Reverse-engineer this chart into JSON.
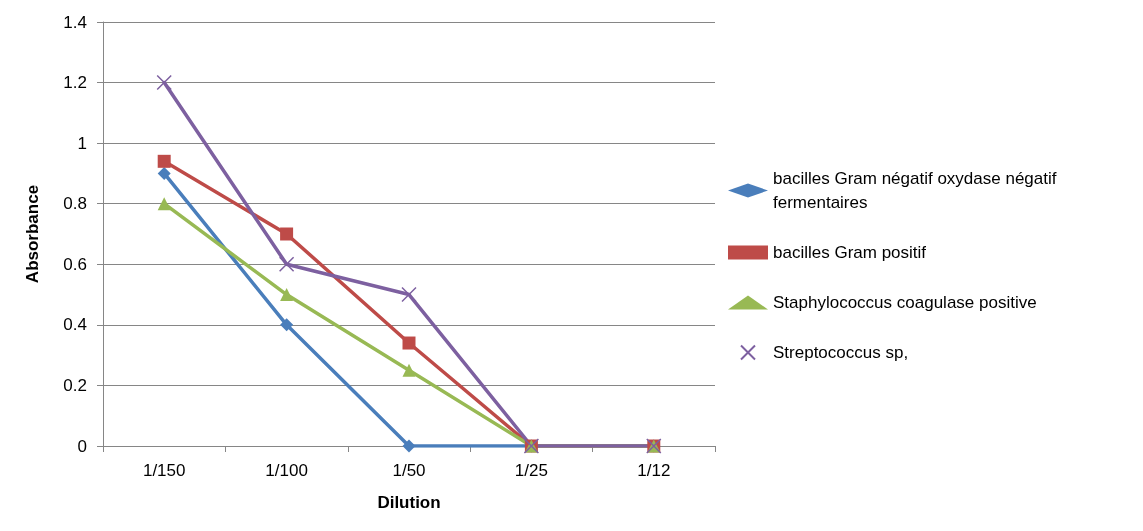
{
  "chart_data": {
    "type": "line",
    "xlabel": "Dilution",
    "ylabel": "Absorbance",
    "categories": [
      "1/150",
      "1/100",
      "1/50",
      "1/25",
      "1/12"
    ],
    "ylim": [
      0,
      1.4
    ],
    "yticks": [
      0,
      0.2,
      0.4,
      0.6,
      0.8,
      1,
      1.2,
      1.4
    ],
    "grid": "y",
    "legend": "right",
    "line_style": "solid",
    "series": [
      {
        "name": "bacilles Gram négatif oxydase négatif fermentaires",
        "color": "#4a7ebb",
        "marker": "diamond",
        "values": [
          0.9,
          0.4,
          0,
          0,
          0
        ]
      },
      {
        "name": "bacilles Gram positif",
        "color": "#be4b48",
        "marker": "square",
        "values": [
          0.94,
          0.7,
          0.34,
          0,
          0
        ]
      },
      {
        "name": "Staphylococcus coagulase positive",
        "color": "#98b954",
        "marker": "triangle",
        "values": [
          0.8,
          0.5,
          0.25,
          0,
          0
        ]
      },
      {
        "name": "Streptococcus sp,",
        "color": "#7d60a0",
        "marker": "cross",
        "values": [
          1.2,
          0.6,
          0.5,
          0,
          0
        ]
      }
    ]
  }
}
